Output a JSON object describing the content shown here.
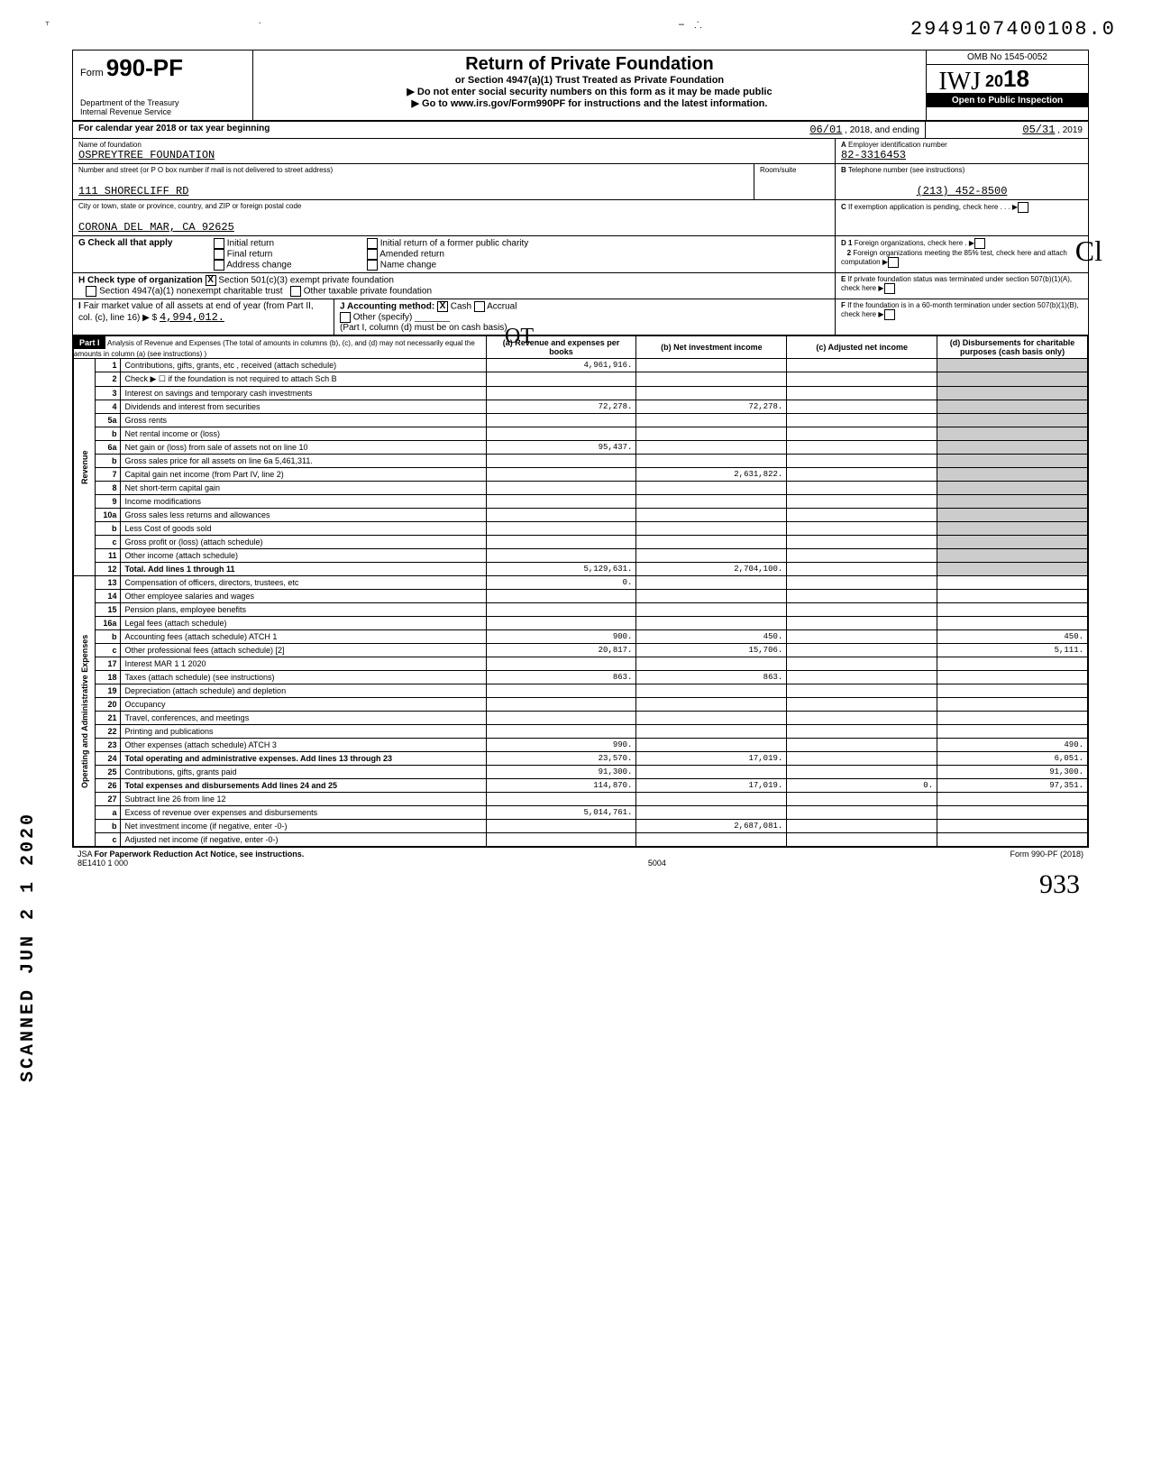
{
  "top": {
    "doc_number": "2949107400108.0"
  },
  "header": {
    "form_prefix": "Form",
    "form_number": "990-PF",
    "dept": "Department of the Treasury",
    "irs": "Internal Revenue Service",
    "title": "Return of Private Foundation",
    "subtitle1": "or Section 4947(a)(1) Trust Treated as Private Foundation",
    "subtitle2": "▶ Do not enter social security numbers on this form as it may be made public",
    "subtitle3": "▶ Go to www.irs.gov/Form990PF for instructions and the latest information.",
    "omb": "OMB No 1545-0052",
    "year": "2018",
    "open": "Open to Public Inspection"
  },
  "info": {
    "year_line": "For calendar year 2018 or tax year beginning",
    "begin_date": "06/01",
    "begin_year": ", 2018, and ending",
    "end_date": "05/31",
    "end_year": ", 2019",
    "name_label": "Name of foundation",
    "name": "OSPREYTREE FOUNDATION",
    "addr_label": "Number and street (or P O box number if mail is not delivered to street address)",
    "addr": "111 SHORECLIFF RD",
    "room_label": "Room/suite",
    "city_label": "City or town, state or province, country, and ZIP or foreign postal code",
    "city": "CORONA DEL MAR, CA 92625",
    "ein_label": "A Employer identification number",
    "ein": "82-3316453",
    "phone_label": "B Telephone number (see instructions)",
    "phone": "(213) 452-8500",
    "c_label": "C If exemption application is pending, check here",
    "g_label": "G Check all that apply",
    "g_initial": "Initial return",
    "g_former": "Initial return of a former public charity",
    "g_final": "Final return",
    "g_amended": "Amended return",
    "g_addr": "Address change",
    "g_name": "Name change",
    "h_label": "H Check type of organization",
    "h_501c3": "Section 501(c)(3) exempt private foundation",
    "h_4947": "Section 4947(a)(1) nonexempt charitable trust",
    "h_other": "Other taxable private foundation",
    "d1": "D 1 Foreign organizations, check here",
    "d2": "2 Foreign organizations meeting the 85% test, check here and attach computation",
    "e": "E If private foundation status was terminated under section 507(b)(1)(A), check here",
    "f": "F If the foundation is in a 60-month termination under section 507(b)(1)(B), check here",
    "i_label": "I Fair market value of all assets at end of year (from Part II, col. (c), line 16) ▶ $",
    "i_value": "4,994,012.",
    "j_label": "J Accounting method:",
    "j_cash": "Cash",
    "j_accrual": "Accrual",
    "j_other": "Other (specify)",
    "j_note": "(Part I, column (d) must be on cash basis)"
  },
  "part1": {
    "title": "Part I",
    "desc": "Analysis of Revenue and Expenses (The total of amounts in columns (b), (c), and (d) may not necessarily equal the amounts in column (a) (see instructions) )",
    "col_a": "(a) Revenue and expenses per books",
    "col_b": "(b) Net investment income",
    "col_c": "(c) Adjusted net income",
    "col_d": "(d) Disbursements for charitable purposes (cash basis only)",
    "revenue_label": "Revenue",
    "expenses_label": "Operating and Administrative Expenses",
    "lines": [
      {
        "num": "1",
        "label": "Contributions, gifts, grants, etc , received (attach schedule)",
        "a": "4,961,916.",
        "b": "",
        "c": "",
        "d": ""
      },
      {
        "num": "2",
        "label": "Check ▶ ☐ if the foundation is not required to attach Sch B",
        "a": "",
        "b": "",
        "c": "",
        "d": ""
      },
      {
        "num": "3",
        "label": "Interest on savings and temporary cash investments",
        "a": "",
        "b": "",
        "c": "",
        "d": ""
      },
      {
        "num": "4",
        "label": "Dividends and interest from securities",
        "a": "72,278.",
        "b": "72,278.",
        "c": "",
        "d": ""
      },
      {
        "num": "5a",
        "label": "Gross rents",
        "a": "",
        "b": "",
        "c": "",
        "d": ""
      },
      {
        "num": "b",
        "label": "Net rental income or (loss)",
        "a": "",
        "b": "",
        "c": "",
        "d": ""
      },
      {
        "num": "6a",
        "label": "Net gain or (loss) from sale of assets not on line 10",
        "a": "95,437.",
        "b": "",
        "c": "",
        "d": ""
      },
      {
        "num": "b",
        "label": "Gross sales price for all assets on line 6a    5,461,311.",
        "a": "",
        "b": "",
        "c": "",
        "d": ""
      },
      {
        "num": "7",
        "label": "Capital gain net income (from Part IV, line 2)",
        "a": "",
        "b": "2,631,822.",
        "c": "",
        "d": ""
      },
      {
        "num": "8",
        "label": "Net short-term capital gain",
        "a": "",
        "b": "",
        "c": "",
        "d": ""
      },
      {
        "num": "9",
        "label": "Income modifications",
        "a": "",
        "b": "",
        "c": "",
        "d": ""
      },
      {
        "num": "10a",
        "label": "Gross sales less returns and allowances",
        "a": "",
        "b": "",
        "c": "",
        "d": ""
      },
      {
        "num": "b",
        "label": "Less Cost of goods sold",
        "a": "",
        "b": "",
        "c": "",
        "d": ""
      },
      {
        "num": "c",
        "label": "Gross profit or (loss) (attach schedule)",
        "a": "",
        "b": "",
        "c": "",
        "d": ""
      },
      {
        "num": "11",
        "label": "Other income (attach schedule)",
        "a": "",
        "b": "",
        "c": "",
        "d": ""
      },
      {
        "num": "12",
        "label": "Total. Add lines 1 through 11",
        "a": "5,129,631.",
        "b": "2,704,100.",
        "c": "",
        "d": ""
      },
      {
        "num": "13",
        "label": "Compensation of officers, directors, trustees, etc",
        "a": "0.",
        "b": "",
        "c": "",
        "d": ""
      },
      {
        "num": "14",
        "label": "Other employee salaries and wages",
        "a": "",
        "b": "",
        "c": "",
        "d": ""
      },
      {
        "num": "15",
        "label": "Pension plans, employee benefits",
        "a": "",
        "b": "",
        "c": "",
        "d": ""
      },
      {
        "num": "16a",
        "label": "Legal fees (attach schedule)",
        "a": "",
        "b": "",
        "c": "",
        "d": ""
      },
      {
        "num": "b",
        "label": "Accounting fees (attach schedule) ATCH 1",
        "a": "900.",
        "b": "450.",
        "c": "",
        "d": "450."
      },
      {
        "num": "c",
        "label": "Other professional fees (attach schedule) [2]",
        "a": "20,817.",
        "b": "15,706.",
        "c": "",
        "d": "5,111."
      },
      {
        "num": "17",
        "label": "Interest   MAR 1 1 2020",
        "a": "",
        "b": "",
        "c": "",
        "d": ""
      },
      {
        "num": "18",
        "label": "Taxes (attach schedule) (see instructions)",
        "a": "863.",
        "b": "863.",
        "c": "",
        "d": ""
      },
      {
        "num": "19",
        "label": "Depreciation (attach schedule) and depletion",
        "a": "",
        "b": "",
        "c": "",
        "d": ""
      },
      {
        "num": "20",
        "label": "Occupancy",
        "a": "",
        "b": "",
        "c": "",
        "d": ""
      },
      {
        "num": "21",
        "label": "Travel, conferences, and meetings",
        "a": "",
        "b": "",
        "c": "",
        "d": ""
      },
      {
        "num": "22",
        "label": "Printing and publications",
        "a": "",
        "b": "",
        "c": "",
        "d": ""
      },
      {
        "num": "23",
        "label": "Other expenses (attach schedule) ATCH 3",
        "a": "990.",
        "b": "",
        "c": "",
        "d": "490."
      },
      {
        "num": "24",
        "label": "Total operating and administrative expenses. Add lines 13 through 23",
        "a": "23,570.",
        "b": "17,019.",
        "c": "",
        "d": "6,051."
      },
      {
        "num": "25",
        "label": "Contributions, gifts, grants paid",
        "a": "91,300.",
        "b": "",
        "c": "",
        "d": "91,300."
      },
      {
        "num": "26",
        "label": "Total expenses and disbursements Add lines 24 and 25",
        "a": "114,870.",
        "b": "17,019.",
        "c": "0.",
        "d": "97,351."
      },
      {
        "num": "27",
        "label": "Subtract line 26 from line 12",
        "a": "",
        "b": "",
        "c": "",
        "d": ""
      },
      {
        "num": "a",
        "label": "Excess of revenue over expenses and disbursements",
        "a": "5,014,761.",
        "b": "",
        "c": "",
        "d": ""
      },
      {
        "num": "b",
        "label": "Net investment income (if negative, enter -0-)",
        "a": "",
        "b": "2,687,081.",
        "c": "",
        "d": ""
      },
      {
        "num": "c",
        "label": "Adjusted net income (if negative, enter -0-)",
        "a": "",
        "b": "",
        "c": "",
        "d": ""
      }
    ]
  },
  "footer": {
    "jsa": "JSA",
    "paperwork": "For Paperwork Reduction Act Notice, see instructions.",
    "code": "8E1410 1 000",
    "page": "5004",
    "form": "Form 990-PF (2018)"
  },
  "stamps": {
    "scanned": "SCANNED JUN 2 1 2020"
  }
}
